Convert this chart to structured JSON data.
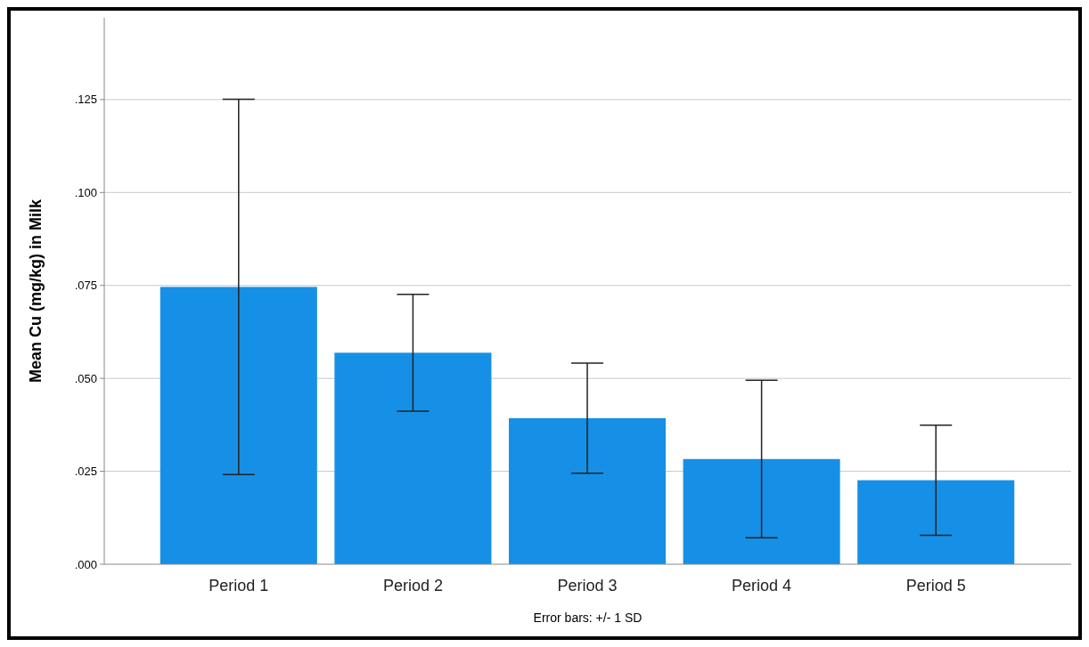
{
  "chart_data": {
    "type": "bar",
    "categories": [
      "Period 1",
      "Period 2",
      "Period 3",
      "Period 4",
      "Period 5"
    ],
    "values": [
      0.0746,
      0.0569,
      0.0393,
      0.0283,
      0.0226
    ],
    "errors": [
      0.0505,
      0.0157,
      0.0148,
      0.0212,
      0.0148
    ],
    "color": "#1690e6",
    "ylabel": "Mean Cu (mg/kg) in Milk",
    "ylim": [
      0,
      0.147
    ],
    "yticks": [
      {
        "value": 0,
        "label": ".000"
      },
      {
        "value": 0.025,
        "label": ".025"
      },
      {
        "value": 0.05,
        "label": ".050"
      },
      {
        "value": 0.075,
        "label": ".075"
      },
      {
        "value": 0.1,
        "label": ".100"
      },
      {
        "value": 0.125,
        "label": ".125"
      }
    ],
    "grid": "y",
    "annotations": [
      "Error bars: +/- 1 SD"
    ]
  }
}
